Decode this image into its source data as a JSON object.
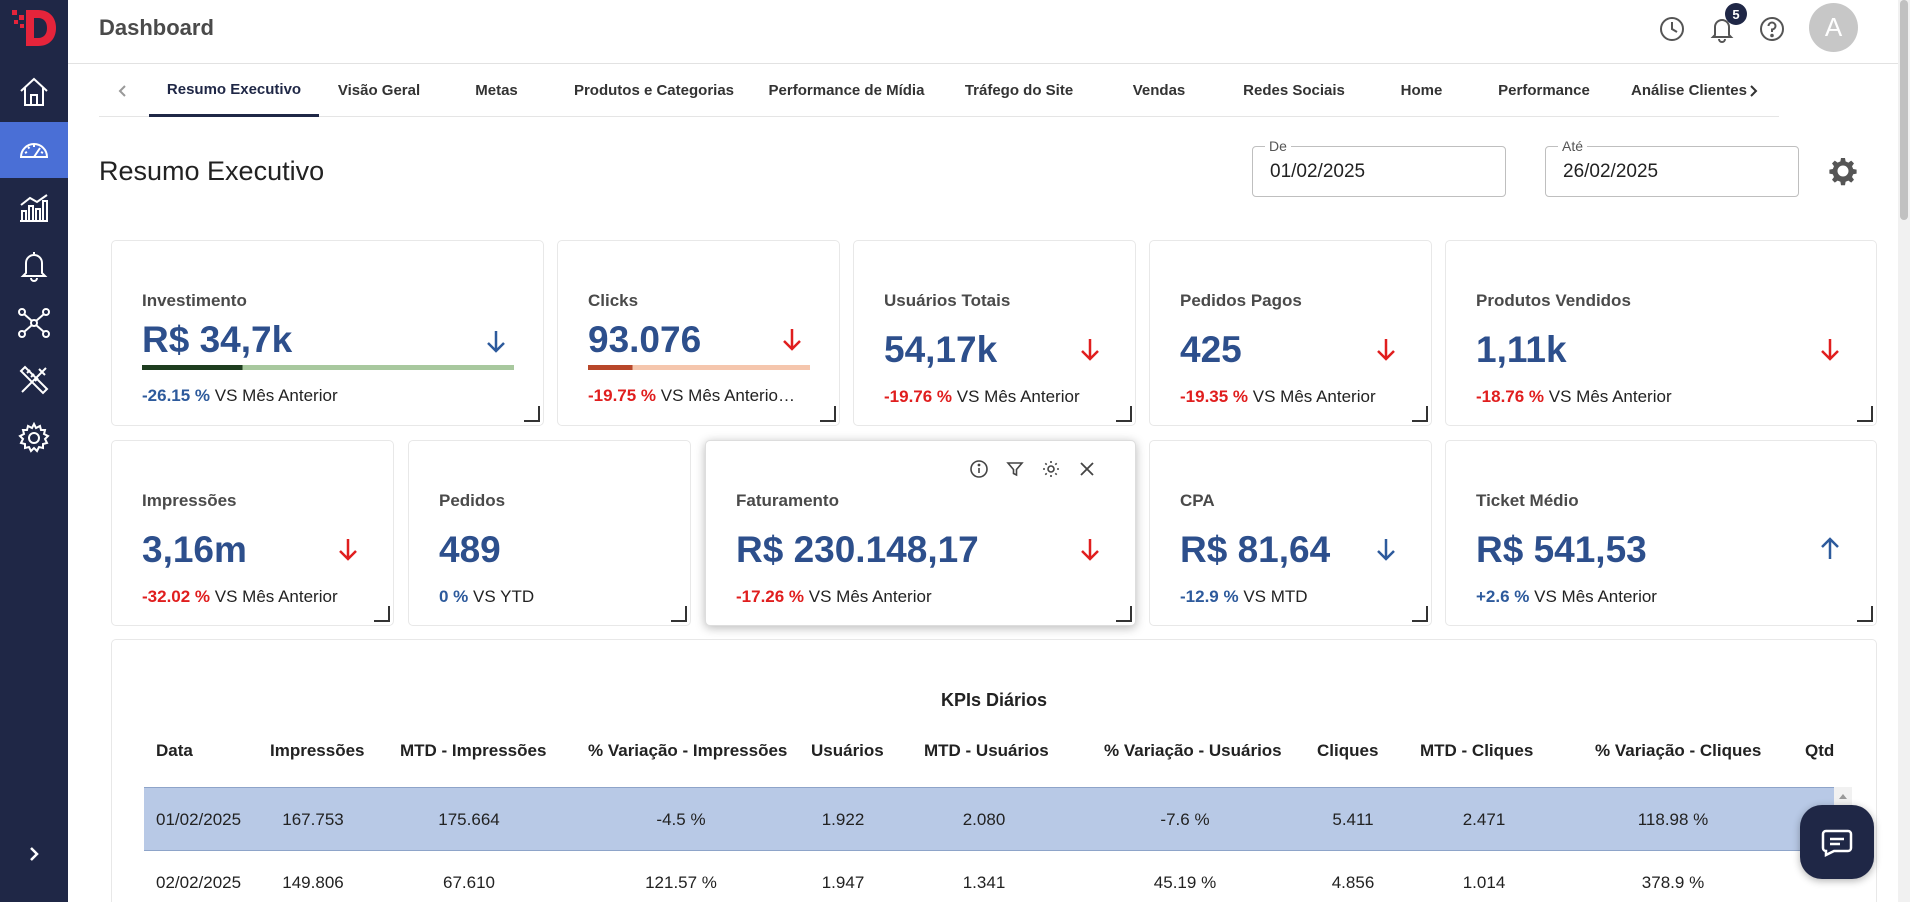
{
  "app": {
    "title": "Dashboard",
    "notification_count": "5",
    "avatar_initial": "A"
  },
  "sidebar": {
    "items": [
      {
        "name": "home-icon",
        "active": false
      },
      {
        "name": "dashboard-icon",
        "active": true
      },
      {
        "name": "chart-icon",
        "active": false
      },
      {
        "name": "bell-icon",
        "active": false
      },
      {
        "name": "network-icon",
        "active": false
      },
      {
        "name": "tools-icon",
        "active": false
      },
      {
        "name": "settings-icon",
        "active": false
      }
    ]
  },
  "tabs": [
    {
      "label": "Resumo Executivo",
      "active": true
    },
    {
      "label": "Visão Geral"
    },
    {
      "label": "Metas"
    },
    {
      "label": "Produtos e Categorias"
    },
    {
      "label": "Performance de Mídia"
    },
    {
      "label": "Tráfego do Site"
    },
    {
      "label": "Vendas"
    },
    {
      "label": "Redes Sociais"
    },
    {
      "label": "Home"
    },
    {
      "label": "Performance"
    },
    {
      "label": "Análise Clientes"
    }
  ],
  "page": {
    "title": "Resumo Executivo"
  },
  "filters": {
    "from": {
      "label": "De",
      "value": "01/02/2025"
    },
    "to": {
      "label": "Até",
      "value": "26/02/2025"
    }
  },
  "kpis": [
    {
      "label": "Investimento",
      "value": "R$ 34,7k",
      "pct": "-26.15 %",
      "suffix": "VS Mês Anterior",
      "trend": "down",
      "color": "#2d5a9c",
      "progress": 0.27
    },
    {
      "label": "Clicks",
      "value": "93.076",
      "pct": "-19.75 %",
      "suffix": "VS Mês Anterio…",
      "trend": "down",
      "color": "#e01e1e",
      "progress": 0.2
    },
    {
      "label": "Usuários Totais",
      "value": "54,17k",
      "pct": "-19.76 %",
      "suffix": "VS Mês Anterior",
      "trend": "down",
      "color": "#e01e1e"
    },
    {
      "label": "Pedidos Pagos",
      "value": "425",
      "pct": "-19.35 %",
      "suffix": "VS Mês Anterior",
      "trend": "down",
      "color": "#e01e1e"
    },
    {
      "label": "Produtos Vendidos",
      "value": "1,11k",
      "pct": "-18.76 %",
      "suffix": "VS Mês Anterior",
      "trend": "down",
      "color": "#e01e1e"
    },
    {
      "label": "Impressões",
      "value": "3,16m",
      "pct": "-32.02 %",
      "suffix": "VS Mês Anterior",
      "trend": "down",
      "color": "#e01e1e"
    },
    {
      "label": "Pedidos",
      "value": "489",
      "pct": "0 %",
      "suffix": "VS YTD",
      "trend": "none",
      "color": "#2d5a9c"
    },
    {
      "label": "Faturamento",
      "value": "R$ 230.148,17",
      "pct": "-17.26 %",
      "suffix": "VS Mês Anterior",
      "trend": "down",
      "color": "#e01e1e"
    },
    {
      "label": "CPA",
      "value": "R$ 81,64",
      "pct": "-12.9 %",
      "suffix": "VS MTD",
      "trend": "down",
      "color": "#2d5a9c"
    },
    {
      "label": "Ticket Médio",
      "value": "R$ 541,53",
      "pct": "+2.6 %",
      "suffix": "VS Mês Anterior",
      "trend": "up",
      "color": "#2d5a9c"
    }
  ],
  "table": {
    "title": "KPIs Diários",
    "columns": [
      "Data",
      "Impressões",
      "MTD - Impressões",
      "% Variação - Impressões",
      "Usuários",
      "MTD - Usuários",
      "% Variação - Usuários",
      "Cliques",
      "MTD - Cliques",
      "% Variação - Cliques",
      "Qtd c"
    ],
    "rows": [
      [
        "01/02/2025",
        "167.753",
        "175.664",
        "-4.5 %",
        "1.922",
        "2.080",
        "-7.6 %",
        "5.411",
        "2.471",
        "118.98 %"
      ],
      [
        "02/02/2025",
        "149.806",
        "67.610",
        "121.57 %",
        "1.947",
        "1.341",
        "45.19 %",
        "4.856",
        "1.014",
        "378.9 %"
      ]
    ]
  }
}
